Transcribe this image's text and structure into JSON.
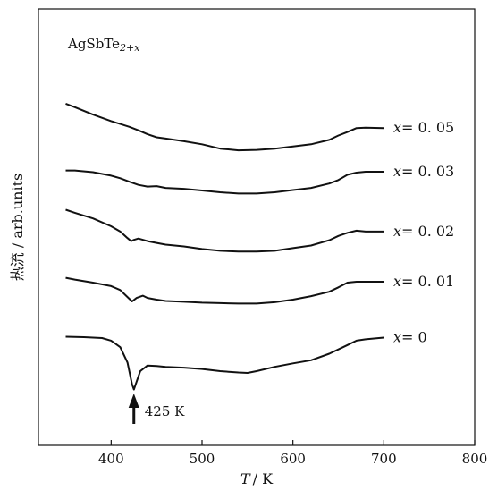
{
  "chart_data": {
    "type": "line",
    "title": "AgSbTe",
    "title_subscript": "2+x",
    "xlabel_var": "T",
    "xlabel_unit": "/ K",
    "ylabel": "热流 / arb.units",
    "xlim": [
      320,
      800
    ],
    "ylim": [
      0,
      1
    ],
    "xticks": [
      400,
      500,
      600,
      700,
      800
    ],
    "grid": false,
    "legend": "none",
    "line_color": "#111111",
    "series": [
      {
        "name": "x = 0.05",
        "label_var": "x",
        "label_value": "= 0. 05",
        "x": [
          350,
          360,
          380,
          400,
          420,
          430,
          440,
          450,
          460,
          480,
          500,
          520,
          540,
          560,
          580,
          600,
          620,
          640,
          650,
          660,
          670,
          680,
          700
        ],
        "y": [
          0.783,
          0.775,
          0.758,
          0.743,
          0.73,
          0.722,
          0.713,
          0.706,
          0.703,
          0.697,
          0.69,
          0.68,
          0.676,
          0.677,
          0.68,
          0.685,
          0.69,
          0.7,
          0.71,
          0.718,
          0.727,
          0.728,
          0.727
        ]
      },
      {
        "name": "x = 0.03",
        "label_var": "x",
        "label_value": "= 0. 03",
        "x": [
          350,
          360,
          380,
          400,
          410,
          420,
          430,
          440,
          450,
          460,
          480,
          500,
          520,
          540,
          560,
          580,
          600,
          620,
          640,
          650,
          660,
          670,
          680,
          700
        ],
        "y": [
          0.63,
          0.63,
          0.626,
          0.618,
          0.612,
          0.604,
          0.597,
          0.593,
          0.594,
          0.59,
          0.588,
          0.584,
          0.58,
          0.577,
          0.577,
          0.58,
          0.585,
          0.59,
          0.6,
          0.608,
          0.62,
          0.625,
          0.627,
          0.627
        ]
      },
      {
        "name": "x = 0.02",
        "label_var": "x",
        "label_value": "= 0. 02",
        "x": [
          350,
          360,
          380,
          400,
          410,
          418,
          422,
          425,
          430,
          440,
          450,
          460,
          480,
          500,
          520,
          540,
          560,
          580,
          600,
          620,
          640,
          650,
          660,
          670,
          680,
          700
        ],
        "y": [
          0.54,
          0.533,
          0.52,
          0.502,
          0.49,
          0.475,
          0.468,
          0.471,
          0.474,
          0.468,
          0.464,
          0.46,
          0.456,
          0.45,
          0.446,
          0.444,
          0.444,
          0.446,
          0.452,
          0.458,
          0.47,
          0.48,
          0.487,
          0.492,
          0.49,
          0.49
        ]
      },
      {
        "name": "x = 0.01",
        "label_var": "x",
        "label_value": "= 0. 01",
        "x": [
          350,
          360,
          380,
          400,
          410,
          418,
          423,
          428,
          435,
          440,
          450,
          460,
          480,
          500,
          520,
          540,
          560,
          580,
          600,
          620,
          640,
          650,
          660,
          670,
          680,
          700
        ],
        "y": [
          0.384,
          0.38,
          0.373,
          0.365,
          0.356,
          0.34,
          0.33,
          0.338,
          0.343,
          0.338,
          0.334,
          0.331,
          0.329,
          0.327,
          0.326,
          0.325,
          0.325,
          0.328,
          0.334,
          0.342,
          0.352,
          0.362,
          0.373,
          0.375,
          0.375,
          0.375
        ]
      },
      {
        "name": "x = 0",
        "label_var": "x",
        "label_value": "= 0",
        "x": [
          350,
          370,
          390,
          400,
          410,
          418,
          423,
          425,
          427,
          432,
          440,
          450,
          460,
          480,
          500,
          520,
          540,
          550,
          560,
          580,
          600,
          620,
          640,
          660,
          670,
          680,
          700
        ],
        "y": [
          0.249,
          0.248,
          0.246,
          0.24,
          0.225,
          0.19,
          0.14,
          0.128,
          0.14,
          0.17,
          0.183,
          0.182,
          0.18,
          0.178,
          0.175,
          0.17,
          0.167,
          0.166,
          0.17,
          0.18,
          0.188,
          0.195,
          0.21,
          0.23,
          0.24,
          0.243,
          0.247
        ]
      }
    ],
    "annotations": [
      {
        "text": "425 K",
        "x": 425,
        "arrow": "up"
      }
    ]
  }
}
